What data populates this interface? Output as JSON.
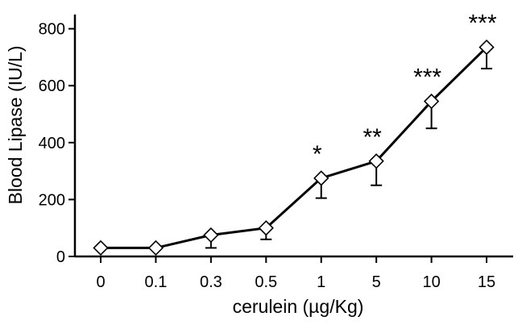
{
  "chart_data": {
    "type": "line",
    "xlabel": "cerulein (µg/Kg)",
    "ylabel": "Blood Lipase (IU/L)",
    "categories": [
      "0",
      "0.1",
      "0.3",
      "0.5",
      "1",
      "5",
      "10",
      "15"
    ],
    "values": [
      30,
      30,
      75,
      100,
      275,
      335,
      545,
      735
    ],
    "error_bars": [
      0,
      0,
      45,
      40,
      70,
      85,
      95,
      75
    ],
    "significance": [
      "",
      "",
      "",
      "",
      "*",
      "**",
      "***",
      "***"
    ],
    "ylim": [
      0,
      850
    ],
    "yticks": [
      0,
      200,
      400,
      600,
      800
    ],
    "marker": "diamond",
    "grid": false
  }
}
